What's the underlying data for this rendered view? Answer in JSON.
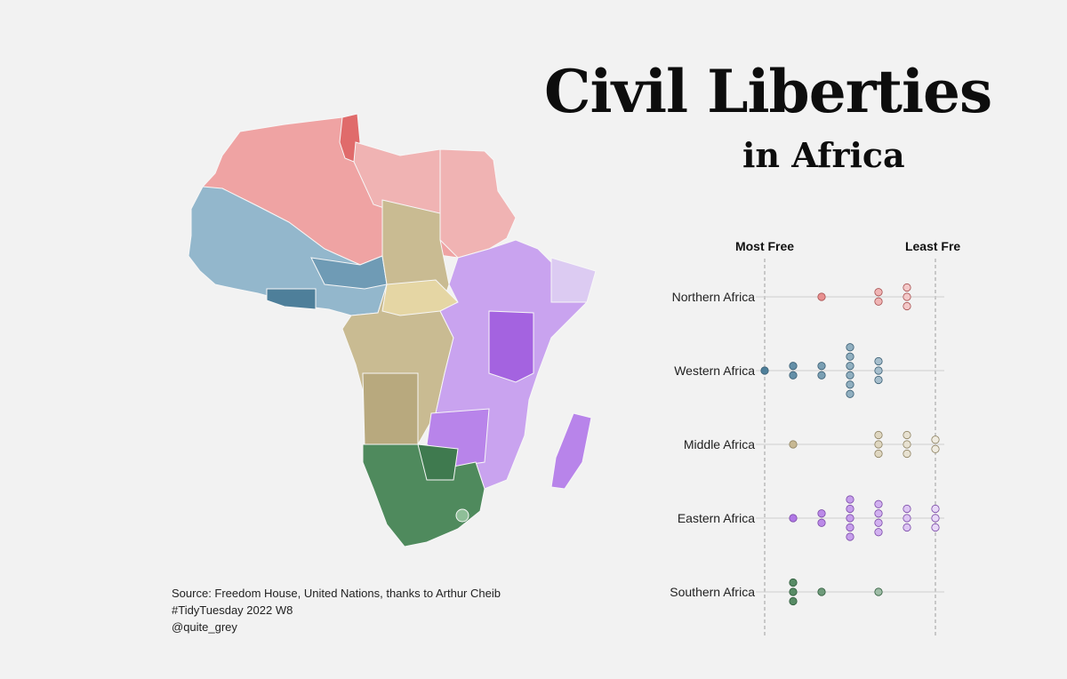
{
  "title": "Civil Liberties",
  "subtitle": "in Africa",
  "caption": {
    "line1": "Source: Freedom House, United Nations, thanks to Arthur Cheib",
    "line2": "#TidyTuesday 2022 W8",
    "line3": "@quite_grey"
  },
  "colors": {
    "background": "#f2f2f2",
    "northern": "#e06b6b",
    "western": "#4e7f9a",
    "middle": "#bfae83",
    "eastern": "#a463e0",
    "southern": "#3f7a4f"
  },
  "chart_data": {
    "type": "scatter",
    "x_axis": {
      "min": 1,
      "max": 7,
      "left_label": "Most Free",
      "right_label": "Least Free"
    },
    "categories": [
      "Northern Africa",
      "Western Africa",
      "Middle Africa",
      "Eastern Africa",
      "Southern Africa"
    ],
    "series": [
      {
        "name": "Northern Africa",
        "color": "#e06b6b",
        "values": [
          {
            "x": 3,
            "n": 1
          },
          {
            "x": 5,
            "n": 2
          },
          {
            "x": 6,
            "n": 3
          }
        ]
      },
      {
        "name": "Western Africa",
        "color": "#4e7f9a",
        "values": [
          {
            "x": 1,
            "n": 1
          },
          {
            "x": 2,
            "n": 2
          },
          {
            "x": 3,
            "n": 2
          },
          {
            "x": 4,
            "n": 6
          },
          {
            "x": 5,
            "n": 3
          }
        ]
      },
      {
        "name": "Middle Africa",
        "color": "#bfae83",
        "values": [
          {
            "x": 2,
            "n": 1
          },
          {
            "x": 5,
            "n": 3
          },
          {
            "x": 6,
            "n": 3
          },
          {
            "x": 7,
            "n": 2
          }
        ]
      },
      {
        "name": "Eastern Africa",
        "color": "#a463e0",
        "values": [
          {
            "x": 2,
            "n": 1
          },
          {
            "x": 3,
            "n": 2
          },
          {
            "x": 4,
            "n": 5
          },
          {
            "x": 5,
            "n": 4
          },
          {
            "x": 6,
            "n": 3
          },
          {
            "x": 7,
            "n": 3
          }
        ]
      },
      {
        "name": "Southern Africa",
        "color": "#3f7a4f",
        "values": [
          {
            "x": 2,
            "n": 3
          },
          {
            "x": 3,
            "n": 1
          },
          {
            "x": 5,
            "n": 1
          }
        ]
      }
    ]
  }
}
